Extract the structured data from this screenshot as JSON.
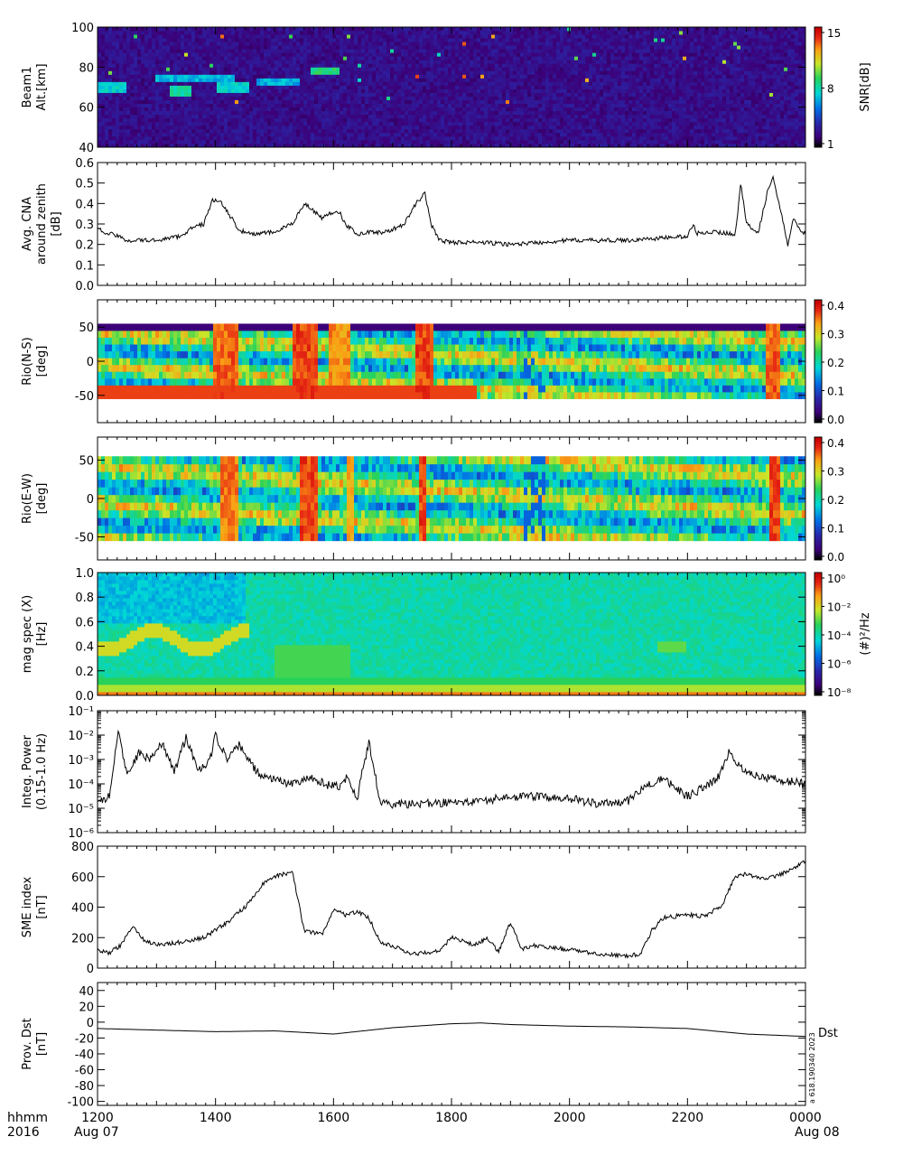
{
  "time_axis": {
    "ticks": [
      "1200",
      "1400",
      "1600",
      "1800",
      "2000",
      "2200",
      "0000"
    ],
    "tick_hours": [
      12,
      14,
      16,
      18,
      20,
      22,
      24
    ],
    "range_hours": [
      12,
      24
    ],
    "unit_label": "hhmm",
    "year_label": "2016",
    "start_date": "Aug 07",
    "end_date": "Aug 08"
  },
  "stamp": "a 618.190340 2023",
  "chart_data": [
    {
      "id": "beam1",
      "type": "heatmap",
      "ylabel": [
        "Beam1",
        "Alt.[km]"
      ],
      "ylim": [
        40,
        100
      ],
      "yticks": [
        "40",
        "60",
        "80",
        "100"
      ],
      "colorbar_label": "SNR[dB]",
      "colorbar_ticks": [
        "1",
        "8",
        "15"
      ],
      "colorscale": "rainbow",
      "background_level": 0.12,
      "enhanced_layers": [
        {
          "t_start": 12.0,
          "t_end": 12.5,
          "alt_km": 70,
          "level": 0.45
        },
        {
          "t_start": 13.0,
          "t_end": 14.3,
          "alt_km": 75,
          "level": 0.4
        },
        {
          "t_start": 13.2,
          "t_end": 13.6,
          "alt_km": 68,
          "level": 0.5
        },
        {
          "t_start": 14.0,
          "t_end": 14.6,
          "alt_km": 70,
          "level": 0.45
        },
        {
          "t_start": 14.7,
          "t_end": 15.4,
          "alt_km": 73,
          "level": 0.4
        },
        {
          "t_start": 15.6,
          "t_end": 16.1,
          "alt_km": 78,
          "level": 0.55
        }
      ]
    },
    {
      "id": "cna",
      "type": "line",
      "ylabel": [
        "Avg. CNA",
        "around zenith",
        "[dB]"
      ],
      "ylim": [
        0.0,
        0.6
      ],
      "yticks": [
        "0.0",
        "0.1",
        "0.2",
        "0.3",
        "0.4",
        "0.5",
        "0.6"
      ],
      "x": [
        12.0,
        12.1,
        12.25,
        12.5,
        13.0,
        13.4,
        13.6,
        13.8,
        13.95,
        14.1,
        14.2,
        14.4,
        14.6,
        15.0,
        15.3,
        15.5,
        15.6,
        15.8,
        16.0,
        16.1,
        16.2,
        16.4,
        16.6,
        16.9,
        17.2,
        17.4,
        17.55,
        17.65,
        17.8,
        18.0,
        18.5,
        19.0,
        19.5,
        20.0,
        20.5,
        21.0,
        21.5,
        22.0,
        22.1,
        22.15,
        22.2,
        22.5,
        22.8,
        22.85,
        22.9,
        23.0,
        23.2,
        23.35,
        23.45,
        23.55,
        23.7,
        23.8,
        23.9,
        24.0
      ],
      "y": [
        0.28,
        0.26,
        0.25,
        0.22,
        0.22,
        0.24,
        0.28,
        0.3,
        0.42,
        0.4,
        0.36,
        0.27,
        0.25,
        0.26,
        0.3,
        0.4,
        0.38,
        0.33,
        0.36,
        0.36,
        0.3,
        0.25,
        0.26,
        0.26,
        0.3,
        0.4,
        0.45,
        0.3,
        0.22,
        0.21,
        0.21,
        0.2,
        0.21,
        0.22,
        0.22,
        0.22,
        0.23,
        0.24,
        0.3,
        0.25,
        0.26,
        0.26,
        0.25,
        0.35,
        0.5,
        0.3,
        0.26,
        0.45,
        0.53,
        0.4,
        0.2,
        0.33,
        0.27,
        0.25
      ]
    },
    {
      "id": "riometer-ns",
      "type": "heatmap",
      "ylabel": [
        "Rio(N-S)",
        "[deg]"
      ],
      "ylim": [
        -90,
        90
      ],
      "yticks": [
        "-50",
        "0",
        "50"
      ],
      "colorbar_ticks": [
        "0.0",
        "0.1",
        "0.2",
        "0.3",
        "0.4"
      ],
      "colorscale": "rainbow",
      "data_extent_deg": [
        -55,
        55
      ],
      "high_periods": [
        {
          "t_start": 13.95,
          "t_end": 14.4,
          "level": 0.92
        },
        {
          "t_start": 15.3,
          "t_end": 15.75,
          "level": 0.95
        },
        {
          "t_start": 15.9,
          "t_end": 16.3,
          "level": 0.88
        },
        {
          "t_start": 17.4,
          "t_end": 17.7,
          "level": 0.95
        },
        {
          "t_start": 23.3,
          "t_end": 23.55,
          "level": 0.92
        }
      ]
    },
    {
      "id": "riometer-ew",
      "type": "heatmap",
      "ylabel": [
        "Rio(E-W)",
        "[deg]"
      ],
      "ylim": [
        -80,
        80
      ],
      "yticks": [
        "-50",
        "0",
        "50"
      ],
      "colorbar_ticks": [
        "0.0",
        "0.1",
        "0.2",
        "0.3",
        "0.4"
      ],
      "colorscale": "rainbow",
      "data_extent_deg": [
        -55,
        55
      ],
      "high_periods": [
        {
          "t_start": 14.1,
          "t_end": 14.4,
          "level": 0.9
        },
        {
          "t_start": 15.4,
          "t_end": 15.75,
          "level": 0.95
        },
        {
          "t_start": 16.2,
          "t_end": 16.35,
          "level": 0.85
        },
        {
          "t_start": 17.45,
          "t_end": 17.6,
          "level": 0.95
        },
        {
          "t_start": 23.4,
          "t_end": 23.6,
          "level": 0.95
        }
      ]
    },
    {
      "id": "mag-spec",
      "type": "heatmap",
      "ylabel": [
        "mag spec (X)",
        "[Hz]"
      ],
      "ylim": [
        0.0,
        1.0
      ],
      "yticks": [
        "0.0",
        "0.2",
        "0.4",
        "0.6",
        "0.8",
        "1.0"
      ],
      "colorbar_label": "(#)²/Hz",
      "colorbar_ticks": [
        "10⁻⁸",
        "10⁻⁶",
        "10⁻⁴",
        "10⁻²",
        "10⁰"
      ],
      "colorscale": "rainbow"
    },
    {
      "id": "integ-power",
      "type": "line",
      "ylabel": [
        "Integ. Power",
        "(0.15-1.0 Hz)"
      ],
      "yscale": "log",
      "ylim": [
        1e-06,
        0.1
      ],
      "yticks": [
        "10⁻⁶",
        "10⁻⁵",
        "10⁻⁴",
        "10⁻³",
        "10⁻²",
        "10⁻¹"
      ],
      "x": [
        12.0,
        12.2,
        12.35,
        12.5,
        12.7,
        12.9,
        13.1,
        13.3,
        13.5,
        13.7,
        13.9,
        14.0,
        14.2,
        14.4,
        14.7,
        15.0,
        15.3,
        15.6,
        15.9,
        16.1,
        16.25,
        16.4,
        16.5,
        16.6,
        16.8,
        17.0,
        17.5,
        18.0,
        18.5,
        19.0,
        19.5,
        20.0,
        20.5,
        21.0,
        21.3,
        21.6,
        22.0,
        22.5,
        22.7,
        23.0,
        23.5,
        24.0
      ],
      "y": [
        2e-05,
        3e-05,
        0.015,
        0.0002,
        0.002,
        0.001,
        0.005,
        0.0003,
        0.008,
        0.0004,
        0.0008,
        0.01,
        0.001,
        0.004,
        0.0003,
        0.00015,
        0.0001,
        0.0002,
        9e-05,
        8e-05,
        0.0002,
        2e-05,
        0.0005,
        0.005,
        1.5e-05,
        1.5e-05,
        1.5e-05,
        1.8e-05,
        2e-05,
        3e-05,
        3e-05,
        2.5e-05,
        1.5e-05,
        2e-05,
        0.0001,
        0.00015,
        3e-05,
        0.00015,
        0.002,
        0.0003,
        0.00015,
        0.0001
      ]
    },
    {
      "id": "sme",
      "type": "line",
      "ylabel": [
        "SME index",
        "[nT]"
      ],
      "ylim": [
        0,
        800
      ],
      "yticks": [
        "0",
        "200",
        "400",
        "600",
        "800"
      ],
      "x": [
        12.0,
        12.2,
        12.4,
        12.6,
        12.8,
        13.0,
        13.4,
        13.8,
        14.2,
        14.5,
        14.8,
        15.0,
        15.2,
        15.3,
        15.5,
        15.8,
        16.0,
        16.2,
        16.4,
        16.6,
        16.8,
        17.0,
        17.3,
        17.6,
        17.8,
        18.0,
        18.4,
        18.6,
        18.8,
        19.0,
        19.2,
        19.4,
        19.6,
        20.0,
        20.5,
        21.0,
        21.2,
        21.4,
        21.6,
        22.0,
        22.3,
        22.6,
        22.8,
        23.0,
        23.3,
        23.6,
        24.0
      ],
      "y": [
        120,
        100,
        150,
        280,
        180,
        150,
        170,
        200,
        300,
        400,
        550,
        600,
        620,
        640,
        250,
        220,
        380,
        350,
        370,
        330,
        160,
        150,
        90,
        100,
        110,
        200,
        150,
        200,
        110,
        300,
        120,
        150,
        140,
        120,
        90,
        80,
        90,
        250,
        330,
        350,
        340,
        420,
        600,
        620,
        580,
        620,
        700
      ]
    },
    {
      "id": "dst",
      "type": "line",
      "ylabel": [
        "Prov. Dst",
        "[nT]"
      ],
      "ylim": [
        -105,
        50
      ],
      "yticks": [
        "-100",
        "-80",
        "-60",
        "-40",
        "-20",
        "0",
        "20",
        "40"
      ],
      "series_label": "Dst",
      "x": [
        12.0,
        13.0,
        14.0,
        15.0,
        16.0,
        17.0,
        18.0,
        18.5,
        19.0,
        20.0,
        21.0,
        22.0,
        23.0,
        24.0
      ],
      "y": [
        -8,
        -10,
        -12,
        -11,
        -15,
        -7,
        -2,
        -1,
        -3,
        -5,
        -6,
        -8,
        -15,
        -18
      ]
    }
  ]
}
